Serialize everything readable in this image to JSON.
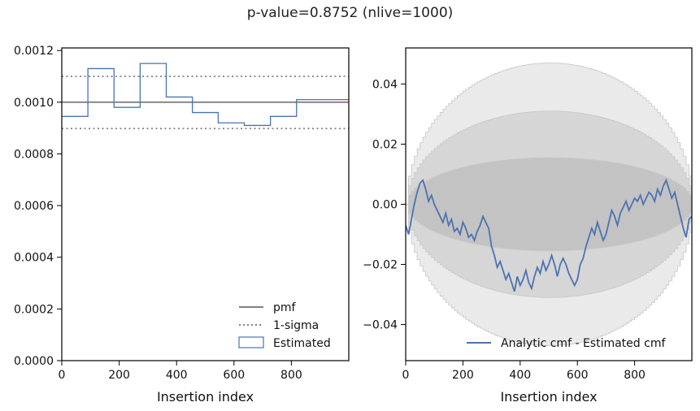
{
  "suptitle": "p-value=0.8752 (nlive=1000)",
  "chart_data": [
    {
      "type": "line",
      "xlabel": "Insertion index",
      "ylabel": "",
      "xlim": [
        0,
        1000
      ],
      "ylim": [
        0,
        0.00121
      ],
      "xticks": [
        0,
        200,
        400,
        600,
        800
      ],
      "xtick_labels": [
        "0",
        "200",
        "400",
        "600",
        "800"
      ],
      "yticks": [
        0,
        0.0002,
        0.0004,
        0.0006,
        0.0008,
        0.001,
        0.0012
      ],
      "ytick_labels": [
        "0.0000",
        "0.0002",
        "0.0004",
        "0.0006",
        "0.0008",
        "0.0010",
        "0.0012"
      ],
      "pmf": 0.001,
      "sigma_band": [
        0.000898,
        0.0011
      ],
      "histogram": {
        "bin_edges": [
          0,
          91,
          182,
          273,
          364,
          455,
          545,
          636,
          727,
          818,
          1000
        ],
        "values": [
          0.000945,
          0.00113,
          0.00098,
          0.00115,
          0.00102,
          0.00096,
          0.00092,
          0.00091,
          0.000945,
          0.00101
        ]
      },
      "legend": {
        "position": "lower right",
        "entries": [
          {
            "label": "pmf",
            "style": "solid",
            "color": "#808080"
          },
          {
            "label": "1-sigma",
            "style": "dotted",
            "color": "#808080"
          },
          {
            "label": "Estimated",
            "style": "step",
            "color": "#4c72b0"
          }
        ]
      }
    },
    {
      "type": "line",
      "xlabel": "Insertion index",
      "ylabel": "",
      "xlim": [
        0,
        1000
      ],
      "ylim": [
        -0.052,
        0.052
      ],
      "xticks": [
        0,
        200,
        400,
        600,
        800
      ],
      "xtick_labels": [
        "0",
        "200",
        "400",
        "600",
        "800"
      ],
      "yticks": [
        -0.04,
        -0.02,
        0.0,
        0.02,
        0.04
      ],
      "ytick_labels": [
        "−0.04",
        "−0.02",
        "0.00",
        "0.02",
        "0.04"
      ],
      "bands": [
        {
          "sigma": 3,
          "half_width_max": 0.047,
          "color": "#e6e6e6"
        },
        {
          "sigma": 2,
          "half_width_max": 0.031,
          "color": "#d2d2d2"
        },
        {
          "sigma": 1,
          "half_width_max": 0.0155,
          "color": "#c0c0c0"
        }
      ],
      "series": [
        {
          "name": "Analytic cmf - Estimated cmf",
          "color": "#4c72b0",
          "x": [
            0,
            10,
            20,
            30,
            40,
            50,
            60,
            70,
            80,
            90,
            100,
            110,
            120,
            130,
            140,
            150,
            160,
            170,
            180,
            190,
            200,
            210,
            220,
            230,
            240,
            250,
            260,
            270,
            280,
            290,
            300,
            310,
            320,
            330,
            340,
            350,
            360,
            370,
            380,
            390,
            400,
            410,
            420,
            430,
            440,
            450,
            460,
            470,
            480,
            490,
            500,
            510,
            520,
            530,
            540,
            550,
            560,
            570,
            580,
            590,
            600,
            610,
            620,
            630,
            640,
            650,
            660,
            670,
            680,
            690,
            700,
            710,
            720,
            730,
            740,
            750,
            760,
            770,
            780,
            790,
            800,
            810,
            820,
            830,
            840,
            850,
            860,
            870,
            880,
            890,
            900,
            910,
            920,
            930,
            940,
            950,
            960,
            970,
            980,
            990,
            1000
          ],
          "y": [
            -0.007,
            -0.01,
            -0.005,
            0.0,
            0.004,
            0.007,
            0.008,
            0.005,
            0.001,
            0.003,
            0.0,
            -0.002,
            -0.004,
            -0.006,
            -0.003,
            -0.007,
            -0.005,
            -0.009,
            -0.008,
            -0.01,
            -0.006,
            -0.008,
            -0.011,
            -0.01,
            -0.012,
            -0.009,
            -0.007,
            -0.004,
            -0.006,
            -0.008,
            -0.014,
            -0.017,
            -0.021,
            -0.019,
            -0.022,
            -0.025,
            -0.023,
            -0.026,
            -0.029,
            -0.024,
            -0.027,
            -0.025,
            -0.022,
            -0.026,
            -0.028,
            -0.024,
            -0.021,
            -0.023,
            -0.019,
            -0.022,
            -0.02,
            -0.017,
            -0.02,
            -0.024,
            -0.02,
            -0.018,
            -0.02,
            -0.023,
            -0.025,
            -0.027,
            -0.025,
            -0.02,
            -0.018,
            -0.014,
            -0.011,
            -0.008,
            -0.01,
            -0.006,
            -0.009,
            -0.012,
            -0.01,
            -0.006,
            -0.002,
            -0.004,
            -0.007,
            -0.003,
            -0.001,
            0.001,
            -0.002,
            0.0,
            0.002,
            0.001,
            0.003,
            0.0,
            0.002,
            0.004,
            0.003,
            0.001,
            0.005,
            0.003,
            0.006,
            0.008,
            0.005,
            0.002,
            0.004,
            0.0,
            -0.004,
            -0.008,
            -0.011,
            -0.005,
            -0.004
          ]
        }
      ],
      "legend": {
        "position": "lower right",
        "entries": [
          {
            "label": "Analytic cmf - Estimated cmf",
            "style": "solid",
            "color": "#4c72b0"
          }
        ]
      }
    }
  ]
}
